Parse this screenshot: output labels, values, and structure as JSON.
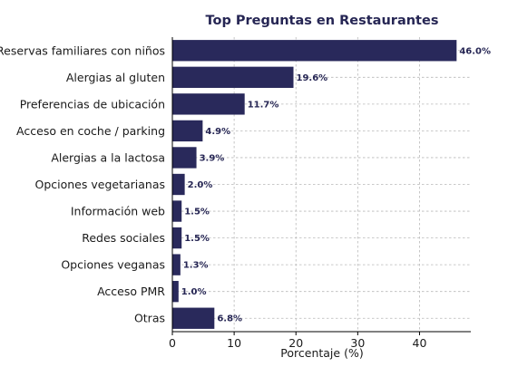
{
  "chart_data": {
    "type": "bar",
    "orientation": "horizontal",
    "title": "Top Preguntas en Restaurantes",
    "xlabel": "Porcentaje (%)",
    "ylabel": "",
    "categories": [
      "Reservas familiares con niños",
      "Alergias al gluten",
      "Preferencias de ubicación",
      "Acceso en coche / parking",
      "Alergias a la lactosa",
      "Opciones vegetarianas",
      "Información web",
      "Redes sociales",
      "Opciones veganas",
      "Acceso PMR",
      "Otras"
    ],
    "values": [
      46.0,
      19.6,
      11.7,
      4.9,
      3.9,
      2.0,
      1.5,
      1.5,
      1.3,
      1.0,
      6.8
    ],
    "data_labels": [
      "46.0%",
      "19.6%",
      "11.7%",
      "4.9%",
      "3.9%",
      "2.0%",
      "1.5%",
      "1.5%",
      "1.3%",
      "1.0%",
      "6.8%"
    ],
    "xlim": [
      0,
      48.3
    ],
    "xticks": [
      0,
      10,
      20,
      30,
      40
    ],
    "xtick_labels": [
      "0",
      "10",
      "20",
      "30",
      "40"
    ],
    "grid": true,
    "legend": "none",
    "colors": {
      "bar": "#29295b",
      "text": "#262654"
    }
  }
}
